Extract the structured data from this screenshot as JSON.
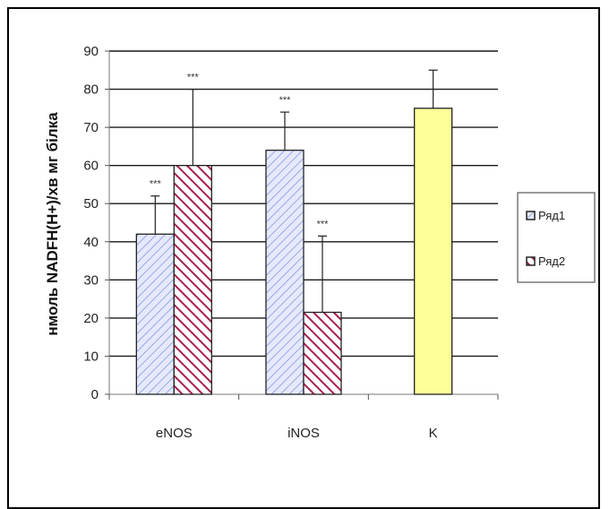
{
  "chart_data": {
    "type": "bar",
    "title": "",
    "xlabel": "",
    "ylabel": "нмоль NADFH(H+)/хв мг білка",
    "ylim": [
      0,
      90
    ],
    "yticks": [
      0,
      10,
      20,
      30,
      40,
      50,
      60,
      70,
      80,
      90
    ],
    "grid": true,
    "legend_position": "right",
    "categories": [
      "eNOS",
      "iNOS",
      "K"
    ],
    "series": [
      {
        "name": "Ряд1",
        "values": [
          42,
          64,
          75
        ],
        "errors": [
          10,
          10,
          10
        ],
        "annotations": [
          "***",
          "***",
          ""
        ],
        "colors": [
          "#c9d2f5",
          "#c9d2f5",
          "#ffff99"
        ],
        "patterns": [
          "hatch-blue",
          "hatch-blue",
          "solid-yellow"
        ]
      },
      {
        "name": "Ряд2",
        "values": [
          60,
          21.5,
          null
        ],
        "errors": [
          20,
          20,
          null
        ],
        "annotations": [
          "***",
          "***",
          ""
        ],
        "colors": [
          "#b0284f",
          "#b0284f",
          null
        ],
        "patterns": [
          "hatch-red",
          "hatch-red",
          null
        ]
      }
    ]
  }
}
